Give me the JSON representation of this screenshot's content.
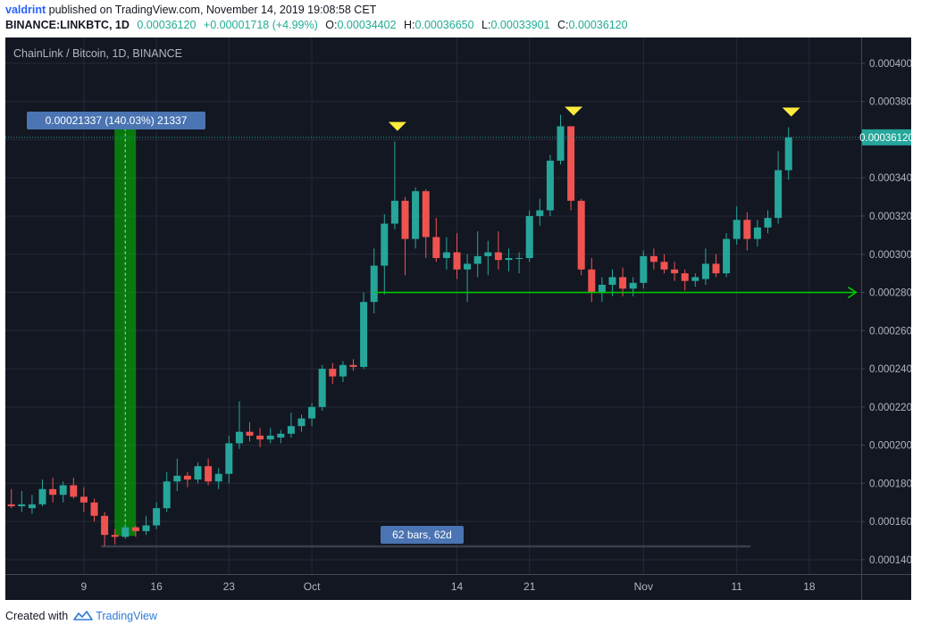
{
  "header": {
    "author": "valdrint",
    "published_text": "published on TradingView.com, November 14, 2019 19:08:58 CET",
    "symbol": "BINANCE:LINKBTC, 1D",
    "last": "0.00036120",
    "change": "+0.00001718 (+4.99%)",
    "o_label": "O:",
    "o": "0.00034402",
    "h_label": "H:",
    "h": "0.00036650",
    "l_label": "L:",
    "l": "0.00033901",
    "c_label": "C:",
    "c": "0.00036120"
  },
  "chart_title": "ChainLink / Bitcoin, 1D, BINANCE",
  "footer": {
    "created_with": "Created with",
    "brand": "TradingView"
  },
  "colors": {
    "background": "#131722",
    "grid": "#252a36",
    "up": "#26a69a",
    "down": "#ef5350",
    "text": "#b2b5be",
    "price_tag": "#26a69a",
    "annotation_green": "#00c800",
    "marker": "#ffeb3b",
    "label_box": "#4a74b2"
  },
  "chart_data": {
    "type": "candlestick",
    "title": "ChainLink / Bitcoin, 1D, BINANCE",
    "x_ticks": [
      "9",
      "16",
      "23",
      "Oct",
      "14",
      "21",
      "Nov",
      "11",
      "18"
    ],
    "y_ticks": [
      "0.00014000",
      "0.00016000",
      "0.00018000",
      "0.00020000",
      "0.00022000",
      "0.00024000",
      "0.00026000",
      "0.00028000",
      "0.00030000",
      "0.00032000",
      "0.00034000",
      "0.00036000",
      "0.00038000",
      "0.00040000"
    ],
    "ylim": [
      0.0001325,
      0.0004135
    ],
    "start_date": "2019-09-02",
    "last_price_label": "0.00036120",
    "last_price": 0.0003612,
    "candles": [
      {
        "o": 0.000169,
        "h": 0.000177,
        "l": 0.000167,
        "c": 0.000168
      },
      {
        "o": 0.000168,
        "h": 0.000176,
        "l": 0.000165,
        "c": 0.000169
      },
      {
        "o": 0.000167,
        "h": 0.000174,
        "l": 0.000164,
        "c": 0.000169
      },
      {
        "o": 0.000169,
        "h": 0.000182,
        "l": 0.000168,
        "c": 0.000177
      },
      {
        "o": 0.000177,
        "h": 0.000183,
        "l": 0.00017,
        "c": 0.000174
      },
      {
        "o": 0.000174,
        "h": 0.000181,
        "l": 0.00017,
        "c": 0.000179
      },
      {
        "o": 0.000179,
        "h": 0.000183,
        "l": 0.000172,
        "c": 0.000173
      },
      {
        "o": 0.000173,
        "h": 0.000178,
        "l": 0.000165,
        "c": 0.00017
      },
      {
        "o": 0.00017,
        "h": 0.000172,
        "l": 0.00016,
        "c": 0.000163
      },
      {
        "o": 0.000163,
        "h": 0.000165,
        "l": 0.000147,
        "c": 0.000153
      },
      {
        "o": 0.000153,
        "h": 0.000156,
        "l": 0.000148,
        "c": 0.000152
      },
      {
        "o": 0.000152,
        "h": 0.000159,
        "l": 0.000151,
        "c": 0.000157
      },
      {
        "o": 0.000157,
        "h": 0.000158,
        "l": 0.000152,
        "c": 0.000155
      },
      {
        "o": 0.000155,
        "h": 0.000163,
        "l": 0.000153,
        "c": 0.000158
      },
      {
        "o": 0.000158,
        "h": 0.00017,
        "l": 0.000156,
        "c": 0.000167
      },
      {
        "o": 0.000167,
        "h": 0.000186,
        "l": 0.000165,
        "c": 0.000181
      },
      {
        "o": 0.000181,
        "h": 0.000193,
        "l": 0.000176,
        "c": 0.000184
      },
      {
        "o": 0.000184,
        "h": 0.000186,
        "l": 0.000178,
        "c": 0.000182
      },
      {
        "o": 0.000182,
        "h": 0.000191,
        "l": 0.00018,
        "c": 0.000189
      },
      {
        "o": 0.000189,
        "h": 0.000193,
        "l": 0.000179,
        "c": 0.000181
      },
      {
        "o": 0.000181,
        "h": 0.000188,
        "l": 0.000177,
        "c": 0.000185
      },
      {
        "o": 0.000185,
        "h": 0.000205,
        "l": 0.00018,
        "c": 0.000201
      },
      {
        "o": 0.000201,
        "h": 0.000223,
        "l": 0.000198,
        "c": 0.000207
      },
      {
        "o": 0.000207,
        "h": 0.000212,
        "l": 0.000202,
        "c": 0.000205
      },
      {
        "o": 0.000205,
        "h": 0.000209,
        "l": 0.000199,
        "c": 0.000203
      },
      {
        "o": 0.000203,
        "h": 0.000209,
        "l": 0.000201,
        "c": 0.000205
      },
      {
        "o": 0.000204,
        "h": 0.000208,
        "l": 0.000201,
        "c": 0.000206
      },
      {
        "o": 0.000206,
        "h": 0.000217,
        "l": 0.000204,
        "c": 0.00021
      },
      {
        "o": 0.00021,
        "h": 0.000216,
        "l": 0.000207,
        "c": 0.000214
      },
      {
        "o": 0.000214,
        "h": 0.000222,
        "l": 0.00021,
        "c": 0.00022
      },
      {
        "o": 0.00022,
        "h": 0.000242,
        "l": 0.000218,
        "c": 0.00024
      },
      {
        "o": 0.00024,
        "h": 0.000243,
        "l": 0.000232,
        "c": 0.000236
      },
      {
        "o": 0.000236,
        "h": 0.000244,
        "l": 0.000233,
        "c": 0.000242
      },
      {
        "o": 0.000242,
        "h": 0.000245,
        "l": 0.000239,
        "c": 0.000241
      },
      {
        "o": 0.000241,
        "h": 0.00028,
        "l": 0.00024,
        "c": 0.000275
      },
      {
        "o": 0.000275,
        "h": 0.000303,
        "l": 0.000269,
        "c": 0.000294
      },
      {
        "o": 0.000294,
        "h": 0.000321,
        "l": 0.000279,
        "c": 0.000316
      },
      {
        "o": 0.000316,
        "h": 0.000359,
        "l": 0.000313,
        "c": 0.000328
      },
      {
        "o": 0.000328,
        "h": 0.00033,
        "l": 0.000289,
        "c": 0.000308
      },
      {
        "o": 0.000308,
        "h": 0.000335,
        "l": 0.000303,
        "c": 0.000333
      },
      {
        "o": 0.000333,
        "h": 0.000334,
        "l": 0.000298,
        "c": 0.000309
      },
      {
        "o": 0.000309,
        "h": 0.000319,
        "l": 0.000296,
        "c": 0.000298
      },
      {
        "o": 0.000298,
        "h": 0.000309,
        "l": 0.000292,
        "c": 0.000301
      },
      {
        "o": 0.000301,
        "h": 0.000311,
        "l": 0.000287,
        "c": 0.000292
      },
      {
        "o": 0.000292,
        "h": 0.0003,
        "l": 0.000275,
        "c": 0.000295
      },
      {
        "o": 0.000295,
        "h": 0.000312,
        "l": 0.000288,
        "c": 0.000299
      },
      {
        "o": 0.000299,
        "h": 0.000307,
        "l": 0.000289,
        "c": 0.000301
      },
      {
        "o": 0.000301,
        "h": 0.000312,
        "l": 0.000292,
        "c": 0.000297
      },
      {
        "o": 0.000297,
        "h": 0.000303,
        "l": 0.000291,
        "c": 0.000298
      },
      {
        "o": 0.000298,
        "h": 0.000301,
        "l": 0.00029,
        "c": 0.000298
      },
      {
        "o": 0.000298,
        "h": 0.000323,
        "l": 0.000296,
        "c": 0.00032
      },
      {
        "o": 0.00032,
        "h": 0.000329,
        "l": 0.000315,
        "c": 0.000323
      },
      {
        "o": 0.000323,
        "h": 0.000352,
        "l": 0.00032,
        "c": 0.000349
      },
      {
        "o": 0.000349,
        "h": 0.000373,
        "l": 0.000347,
        "c": 0.000367
      },
      {
        "o": 0.000367,
        "h": 0.000367,
        "l": 0.000323,
        "c": 0.000328
      },
      {
        "o": 0.000328,
        "h": 0.000329,
        "l": 0.000289,
        "c": 0.000292
      },
      {
        "o": 0.000292,
        "h": 0.000298,
        "l": 0.000275,
        "c": 0.00028
      },
      {
        "o": 0.00028,
        "h": 0.000288,
        "l": 0.000275,
        "c": 0.000284
      },
      {
        "o": 0.000284,
        "h": 0.000292,
        "l": 0.000278,
        "c": 0.000288
      },
      {
        "o": 0.000288,
        "h": 0.000293,
        "l": 0.000278,
        "c": 0.000282
      },
      {
        "o": 0.000282,
        "h": 0.000288,
        "l": 0.000278,
        "c": 0.000285
      },
      {
        "o": 0.000285,
        "h": 0.000302,
        "l": 0.000282,
        "c": 0.000299
      },
      {
        "o": 0.000299,
        "h": 0.000303,
        "l": 0.000292,
        "c": 0.000296
      },
      {
        "o": 0.000296,
        "h": 0.0003,
        "l": 0.00029,
        "c": 0.000292
      },
      {
        "o": 0.000292,
        "h": 0.000296,
        "l": 0.000286,
        "c": 0.00029
      },
      {
        "o": 0.00029,
        "h": 0.000292,
        "l": 0.000281,
        "c": 0.000286
      },
      {
        "o": 0.000286,
        "h": 0.00029,
        "l": 0.000283,
        "c": 0.000288
      },
      {
        "o": 0.000287,
        "h": 0.000303,
        "l": 0.000284,
        "c": 0.000295
      },
      {
        "o": 0.000295,
        "h": 0.0003,
        "l": 0.000288,
        "c": 0.00029
      },
      {
        "o": 0.00029,
        "h": 0.000311,
        "l": 0.000288,
        "c": 0.000308
      },
      {
        "o": 0.000308,
        "h": 0.000325,
        "l": 0.000305,
        "c": 0.000318
      },
      {
        "o": 0.000318,
        "h": 0.000322,
        "l": 0.000302,
        "c": 0.000308
      },
      {
        "o": 0.000308,
        "h": 0.000318,
        "l": 0.000304,
        "c": 0.000314
      },
      {
        "o": 0.000314,
        "h": 0.000323,
        "l": 0.000311,
        "c": 0.000319
      },
      {
        "o": 0.000319,
        "h": 0.000354,
        "l": 0.000316,
        "c": 0.000344
      },
      {
        "o": 0.000344,
        "h": 0.0003665,
        "l": 0.000339,
        "c": 0.0003612
      }
    ],
    "annotations": {
      "measure_label": "0.00021337 (140.03%) 21337",
      "measure_from_index": 10,
      "measure_low": 0.0001525,
      "measure_high": 0.000366,
      "bars_label": "62 bars, 62d",
      "bars_from_index": 9,
      "bars_to_index": 71,
      "support_level": 0.00028,
      "support_from_index": 35,
      "support_to_index": 81,
      "top_marker_indices": [
        37,
        54,
        75
      ]
    }
  }
}
